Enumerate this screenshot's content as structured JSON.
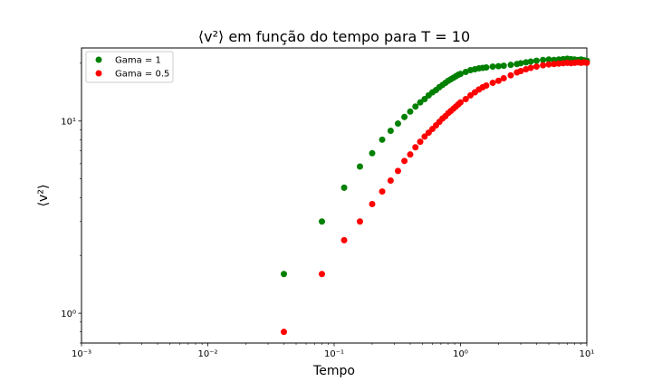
{
  "chart_data": {
    "type": "scatter",
    "title": "⟨v²⟩ em função do tempo para T = 10",
    "xlabel": "Tempo",
    "ylabel": "⟨v²⟩",
    "xscale": "log",
    "yscale": "log",
    "xlim": [
      0.001,
      10
    ],
    "ylim": [
      0.7,
      24
    ],
    "x_ticks": [
      0.001,
      0.01,
      0.1,
      1,
      10
    ],
    "x_tick_labels": [
      "10⁻³",
      "10⁻²",
      "10⁻¹",
      "10⁰",
      "10¹"
    ],
    "y_ticks": [
      1,
      10
    ],
    "y_tick_labels": [
      "10⁰",
      "10¹"
    ],
    "grid": false,
    "legend_position": "top-left",
    "series": [
      {
        "name": "Gama = 1",
        "color": "#008000",
        "points": [
          [
            0.04,
            1.6
          ],
          [
            0.08,
            3.0
          ],
          [
            0.12,
            4.5
          ],
          [
            0.16,
            5.8
          ],
          [
            0.2,
            6.8
          ],
          [
            0.24,
            8.0
          ],
          [
            0.28,
            8.9
          ],
          [
            0.32,
            9.7
          ],
          [
            0.36,
            10.5
          ],
          [
            0.4,
            11.2
          ],
          [
            0.44,
            11.9
          ],
          [
            0.48,
            12.5
          ],
          [
            0.52,
            13.0
          ],
          [
            0.56,
            13.6
          ],
          [
            0.6,
            14.1
          ],
          [
            0.64,
            14.5
          ],
          [
            0.68,
            15.0
          ],
          [
            0.72,
            15.4
          ],
          [
            0.76,
            15.8
          ],
          [
            0.8,
            16.2
          ],
          [
            0.84,
            16.5
          ],
          [
            0.88,
            16.8
          ],
          [
            0.92,
            17.1
          ],
          [
            0.96,
            17.4
          ],
          [
            1.0,
            17.6
          ],
          [
            1.1,
            18.0
          ],
          [
            1.2,
            18.4
          ],
          [
            1.3,
            18.6
          ],
          [
            1.4,
            18.8
          ],
          [
            1.5,
            18.9
          ],
          [
            1.6,
            19.0
          ],
          [
            1.8,
            19.2
          ],
          [
            2.0,
            19.3
          ],
          [
            2.2,
            19.4
          ],
          [
            2.5,
            19.6
          ],
          [
            2.8,
            19.8
          ],
          [
            3.0,
            20.0
          ],
          [
            3.3,
            20.2
          ],
          [
            3.6,
            20.4
          ],
          [
            4.0,
            20.6
          ],
          [
            4.5,
            20.8
          ],
          [
            5.0,
            20.9
          ],
          [
            5.5,
            20.8
          ],
          [
            6.0,
            20.9
          ],
          [
            6.5,
            21.0
          ],
          [
            7.0,
            21.1
          ],
          [
            7.5,
            21.0
          ],
          [
            8.0,
            20.9
          ],
          [
            8.5,
            20.8
          ],
          [
            9.0,
            20.9
          ],
          [
            9.5,
            20.7
          ],
          [
            10.0,
            20.6
          ]
        ]
      },
      {
        "name": "Gama = 0.5",
        "color": "#ff0000",
        "points": [
          [
            0.04,
            0.8
          ],
          [
            0.08,
            1.6
          ],
          [
            0.12,
            2.4
          ],
          [
            0.16,
            3.0
          ],
          [
            0.2,
            3.7
          ],
          [
            0.24,
            4.3
          ],
          [
            0.28,
            4.9
          ],
          [
            0.32,
            5.5
          ],
          [
            0.36,
            6.2
          ],
          [
            0.4,
            6.7
          ],
          [
            0.44,
            7.3
          ],
          [
            0.48,
            7.8
          ],
          [
            0.52,
            8.3
          ],
          [
            0.56,
            8.7
          ],
          [
            0.6,
            9.1
          ],
          [
            0.64,
            9.5
          ],
          [
            0.68,
            9.9
          ],
          [
            0.72,
            10.3
          ],
          [
            0.76,
            10.6
          ],
          [
            0.8,
            11.0
          ],
          [
            0.84,
            11.3
          ],
          [
            0.88,
            11.6
          ],
          [
            0.92,
            11.9
          ],
          [
            0.96,
            12.2
          ],
          [
            1.0,
            12.5
          ],
          [
            1.1,
            13.0
          ],
          [
            1.2,
            13.6
          ],
          [
            1.3,
            14.1
          ],
          [
            1.4,
            14.6
          ],
          [
            1.5,
            15.0
          ],
          [
            1.6,
            15.3
          ],
          [
            1.8,
            15.8
          ],
          [
            2.0,
            16.2
          ],
          [
            2.2,
            16.7
          ],
          [
            2.5,
            17.3
          ],
          [
            2.8,
            17.9
          ],
          [
            3.0,
            18.2
          ],
          [
            3.3,
            18.6
          ],
          [
            3.6,
            18.9
          ],
          [
            4.0,
            19.2
          ],
          [
            4.5,
            19.5
          ],
          [
            5.0,
            19.7
          ],
          [
            5.5,
            19.8
          ],
          [
            6.0,
            19.9
          ],
          [
            6.5,
            20.0
          ],
          [
            7.0,
            20.1
          ],
          [
            7.5,
            20.0
          ],
          [
            8.0,
            20.1
          ],
          [
            8.5,
            20.2
          ],
          [
            9.0,
            20.1
          ],
          [
            9.5,
            20.2
          ],
          [
            10.0,
            20.1
          ]
        ]
      }
    ]
  }
}
